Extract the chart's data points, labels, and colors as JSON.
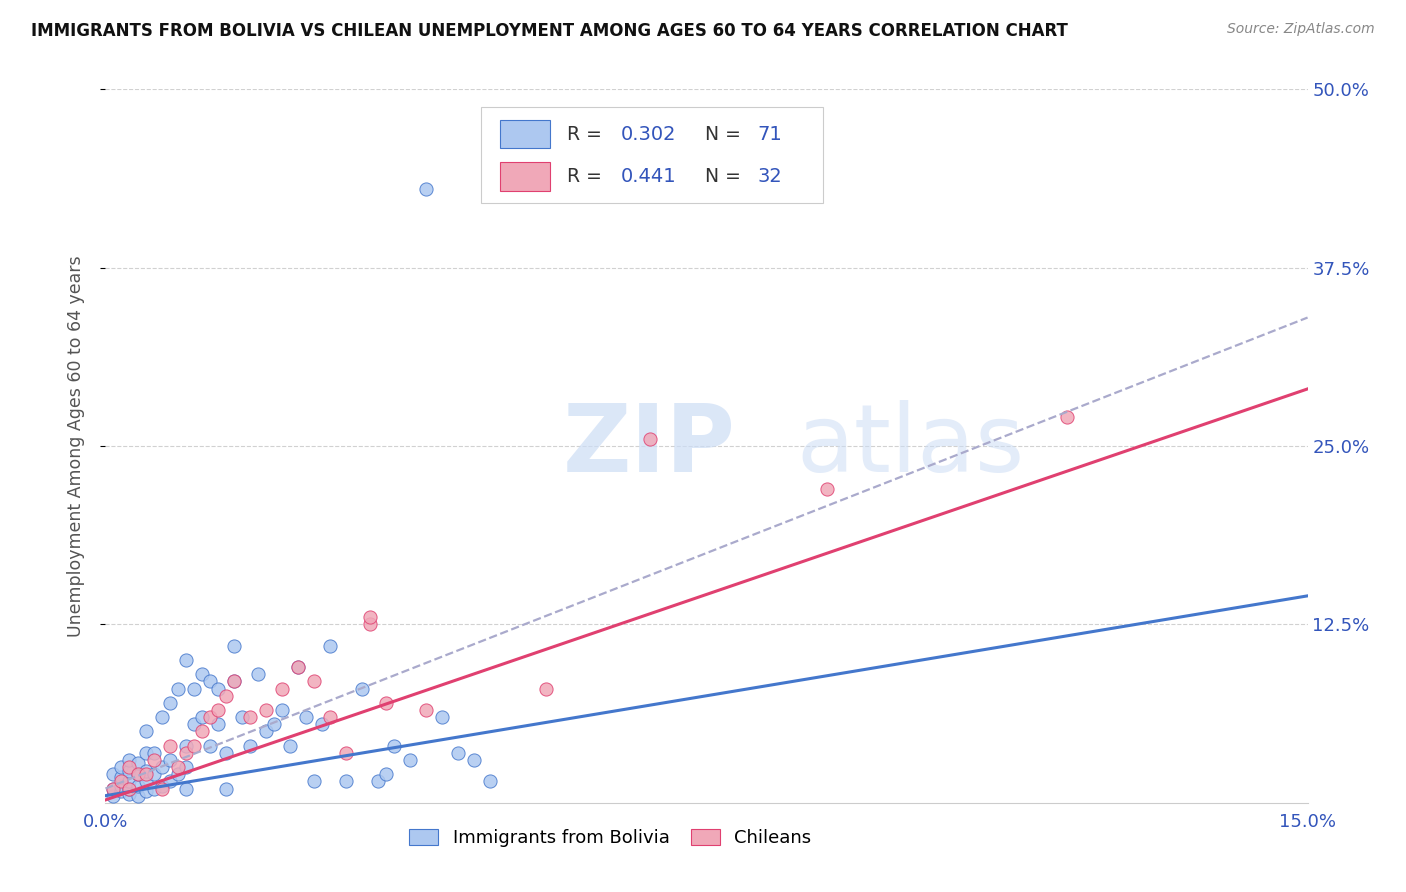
{
  "title": "IMMIGRANTS FROM BOLIVIA VS CHILEAN UNEMPLOYMENT AMONG AGES 60 TO 64 YEARS CORRELATION CHART",
  "source": "Source: ZipAtlas.com",
  "ylabel": "Unemployment Among Ages 60 to 64 years",
  "xlim": [
    0.0,
    0.15
  ],
  "ylim": [
    0.0,
    0.5
  ],
  "x_ticks": [
    0.0,
    0.025,
    0.05,
    0.075,
    0.1,
    0.125,
    0.15
  ],
  "x_tick_labels": [
    "0.0%",
    "",
    "",
    "",
    "",
    "",
    "15.0%"
  ],
  "y_ticks_right": [
    0.125,
    0.25,
    0.375,
    0.5
  ],
  "y_tick_labels_right": [
    "12.5%",
    "25.0%",
    "37.5%",
    "50.0%"
  ],
  "legend_r1": "0.302",
  "legend_n1": "71",
  "legend_r2": "0.441",
  "legend_n2": "32",
  "color_bolivia_face": "#adc8f0",
  "color_bolivia_edge": "#4477cc",
  "color_chilean_face": "#f0a8b8",
  "color_chilean_edge": "#e04070",
  "color_line_bolivia": "#4477cc",
  "color_line_chilean": "#e04070",
  "color_line_dashed": "#aaaacc",
  "title_color": "#111111",
  "source_color": "#888888",
  "axis_color": "#3355bb",
  "grid_color": "#cccccc",
  "bolivia_x": [
    0.001,
    0.001,
    0.001,
    0.002,
    0.002,
    0.002,
    0.002,
    0.003,
    0.003,
    0.003,
    0.003,
    0.003,
    0.004,
    0.004,
    0.004,
    0.004,
    0.005,
    0.005,
    0.005,
    0.005,
    0.005,
    0.006,
    0.006,
    0.006,
    0.007,
    0.007,
    0.007,
    0.008,
    0.008,
    0.008,
    0.009,
    0.009,
    0.01,
    0.01,
    0.01,
    0.01,
    0.011,
    0.011,
    0.012,
    0.012,
    0.013,
    0.013,
    0.014,
    0.014,
    0.015,
    0.015,
    0.016,
    0.016,
    0.017,
    0.018,
    0.019,
    0.02,
    0.021,
    0.022,
    0.023,
    0.024,
    0.025,
    0.026,
    0.027,
    0.028,
    0.03,
    0.032,
    0.034,
    0.035,
    0.036,
    0.038,
    0.04,
    0.042,
    0.044,
    0.046,
    0.048
  ],
  "bolivia_y": [
    0.005,
    0.01,
    0.02,
    0.008,
    0.012,
    0.018,
    0.025,
    0.006,
    0.01,
    0.015,
    0.022,
    0.03,
    0.005,
    0.012,
    0.02,
    0.028,
    0.008,
    0.015,
    0.022,
    0.035,
    0.05,
    0.01,
    0.02,
    0.035,
    0.012,
    0.025,
    0.06,
    0.015,
    0.03,
    0.07,
    0.02,
    0.08,
    0.01,
    0.025,
    0.04,
    0.1,
    0.055,
    0.08,
    0.06,
    0.09,
    0.04,
    0.085,
    0.055,
    0.08,
    0.01,
    0.035,
    0.085,
    0.11,
    0.06,
    0.04,
    0.09,
    0.05,
    0.055,
    0.065,
    0.04,
    0.095,
    0.06,
    0.015,
    0.055,
    0.11,
    0.015,
    0.08,
    0.015,
    0.02,
    0.04,
    0.03,
    0.43,
    0.06,
    0.035,
    0.03,
    0.015
  ],
  "chilean_x": [
    0.001,
    0.002,
    0.003,
    0.003,
    0.004,
    0.005,
    0.006,
    0.007,
    0.008,
    0.009,
    0.01,
    0.011,
    0.012,
    0.013,
    0.014,
    0.015,
    0.016,
    0.018,
    0.02,
    0.022,
    0.024,
    0.026,
    0.028,
    0.03,
    0.033,
    0.033,
    0.035,
    0.04,
    0.055,
    0.068,
    0.09,
    0.12
  ],
  "chilean_y": [
    0.01,
    0.015,
    0.01,
    0.025,
    0.02,
    0.02,
    0.03,
    0.01,
    0.04,
    0.025,
    0.035,
    0.04,
    0.05,
    0.06,
    0.065,
    0.075,
    0.085,
    0.06,
    0.065,
    0.08,
    0.095,
    0.085,
    0.06,
    0.035,
    0.125,
    0.13,
    0.07,
    0.065,
    0.08,
    0.255,
    0.22,
    0.27
  ],
  "line_bolivia_x0": 0.0,
  "line_bolivia_y0": 0.005,
  "line_bolivia_x1": 0.15,
  "line_bolivia_y1": 0.145,
  "line_chilean_x0": 0.0,
  "line_chilean_y0": 0.002,
  "line_chilean_x1": 0.15,
  "line_chilean_y1": 0.29,
  "line_dashed_x0": 0.0,
  "line_dashed_y0": 0.01,
  "line_dashed_x1": 0.15,
  "line_dashed_y1": 0.34
}
